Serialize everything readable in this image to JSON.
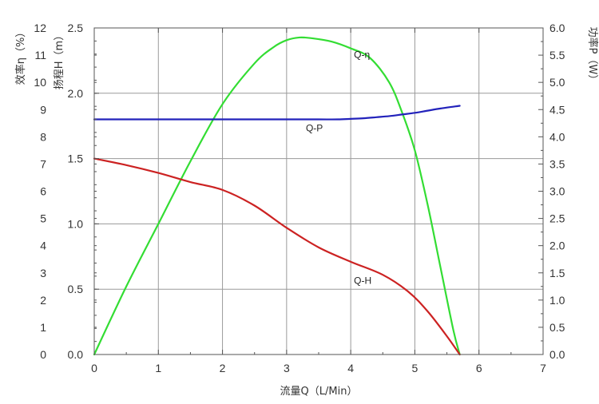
{
  "chart_data": {
    "type": "line",
    "x_axis": {
      "label": "流量Q（L/Min）",
      "range": [
        0,
        7
      ],
      "ticks": [
        "0",
        "1",
        "2",
        "3",
        "4",
        "5",
        "6",
        "7"
      ]
    },
    "y_axes": {
      "efficiency": {
        "label": "效率η（%）",
        "range": [
          0,
          12
        ],
        "ticks": [
          "0",
          "1",
          "2",
          "3",
          "4",
          "5",
          "6",
          "7",
          "8",
          "9",
          "10",
          "11",
          "12"
        ]
      },
      "head": {
        "label": "扬程H（m）",
        "range": [
          0,
          2.5
        ],
        "ticks": [
          "0.0",
          "0.5",
          "1.0",
          "1.5",
          "2.0",
          "2.5"
        ]
      },
      "power": {
        "label": "功率P（W）",
        "range": [
          0,
          6
        ],
        "ticks": [
          "0.0",
          "0.5",
          "1.0",
          "1.5",
          "2.0",
          "2.5",
          "3.0",
          "3.5",
          "4.0",
          "4.5",
          "5.0",
          "5.5",
          "6.0"
        ]
      }
    },
    "grid": true,
    "series": [
      {
        "name": "Q-η",
        "axis": "efficiency",
        "color": "#33dd33",
        "x": [
          0,
          0.5,
          1.0,
          1.5,
          2.0,
          2.5,
          2.8,
          3.0,
          3.2,
          3.4,
          3.7,
          4.0,
          4.3,
          4.6,
          4.8,
          5.0,
          5.2,
          5.4,
          5.6,
          5.7
        ],
        "y": [
          0,
          2.5,
          4.8,
          7.1,
          9.2,
          10.7,
          11.3,
          11.55,
          11.65,
          11.62,
          11.5,
          11.25,
          10.9,
          10.0,
          8.9,
          7.5,
          5.5,
          3.2,
          0.9,
          0
        ]
      },
      {
        "name": "Q-P",
        "axis": "power",
        "color": "#2222bb",
        "x": [
          0,
          0.5,
          1.0,
          1.5,
          2.0,
          2.5,
          3.0,
          3.5,
          3.8,
          4.0,
          4.2,
          4.4,
          4.6,
          4.8,
          5.0,
          5.2,
          5.4,
          5.7
        ],
        "y": [
          4.32,
          4.32,
          4.32,
          4.32,
          4.32,
          4.32,
          4.32,
          4.32,
          4.32,
          4.33,
          4.34,
          4.36,
          4.38,
          4.41,
          4.44,
          4.48,
          4.52,
          4.57
        ]
      },
      {
        "name": "Q-H",
        "axis": "head",
        "color": "#cc2222",
        "x": [
          0,
          0.5,
          1.0,
          1.5,
          2.0,
          2.5,
          3.0,
          3.5,
          4.0,
          4.5,
          4.9,
          5.2,
          5.5,
          5.7
        ],
        "y": [
          1.5,
          1.45,
          1.39,
          1.32,
          1.26,
          1.14,
          0.97,
          0.82,
          0.71,
          0.61,
          0.48,
          0.33,
          0.14,
          0.0
        ]
      }
    ],
    "annotations": [
      {
        "text": "Q-η",
        "series": "Q-η"
      },
      {
        "text": "Q-P",
        "series": "Q-P"
      },
      {
        "text": "Q-H",
        "series": "Q-H"
      }
    ]
  }
}
